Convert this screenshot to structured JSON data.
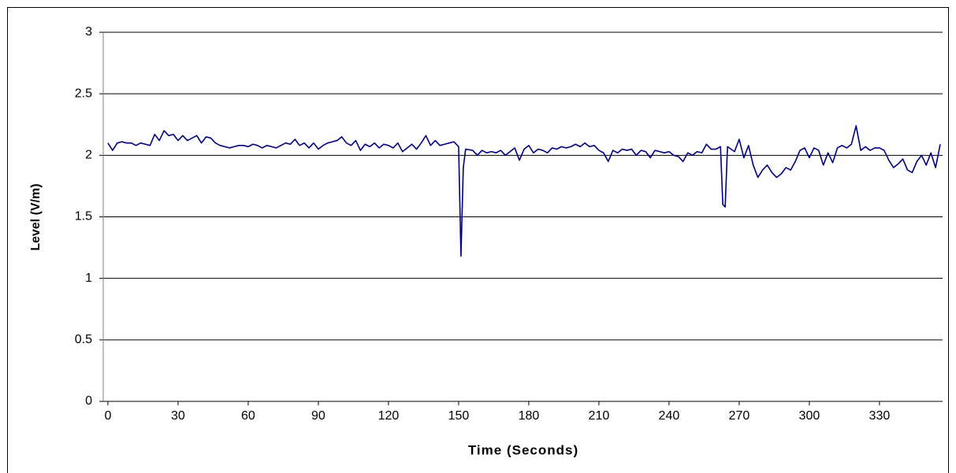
{
  "chart_data": {
    "type": "line",
    "xlabel": "Time (Seconds)",
    "ylabel": "Level (V/m)",
    "x": [
      0,
      2,
      4,
      6,
      8,
      10,
      12,
      14,
      16,
      18,
      20,
      22,
      24,
      26,
      28,
      30,
      32,
      34,
      36,
      38,
      40,
      42,
      44,
      46,
      48,
      50,
      52,
      54,
      56,
      58,
      60,
      62,
      64,
      66,
      68,
      70,
      72,
      74,
      76,
      78,
      80,
      82,
      84,
      86,
      88,
      90,
      92,
      94,
      96,
      98,
      100,
      102,
      104,
      106,
      108,
      110,
      112,
      114,
      116,
      118,
      120,
      122,
      124,
      126,
      128,
      130,
      132,
      134,
      136,
      138,
      140,
      142,
      144,
      146,
      148,
      150,
      151,
      152,
      153,
      156,
      158,
      160,
      162,
      164,
      166,
      168,
      170,
      172,
      174,
      176,
      178,
      180,
      182,
      184,
      186,
      188,
      190,
      192,
      194,
      196,
      198,
      200,
      202,
      204,
      206,
      208,
      210,
      212,
      214,
      216,
      218,
      220,
      222,
      224,
      226,
      228,
      230,
      232,
      234,
      236,
      238,
      240,
      242,
      244,
      246,
      248,
      250,
      252,
      254,
      256,
      258,
      260,
      262,
      263,
      264,
      265,
      268,
      270,
      272,
      274,
      276,
      278,
      280,
      282,
      284,
      286,
      288,
      290,
      292,
      294,
      296,
      298,
      300,
      302,
      304,
      306,
      308,
      310,
      312,
      314,
      316,
      318,
      320,
      322,
      324,
      326,
      328,
      330,
      332,
      334,
      336,
      338,
      340,
      342,
      344,
      346,
      348,
      350,
      352,
      354,
      356
    ],
    "series": [
      {
        "name": "Level",
        "color": "#000080",
        "values": [
          2.1,
          2.04,
          2.1,
          2.11,
          2.1,
          2.1,
          2.08,
          2.1,
          2.09,
          2.08,
          2.17,
          2.12,
          2.2,
          2.16,
          2.17,
          2.12,
          2.16,
          2.12,
          2.14,
          2.16,
          2.1,
          2.15,
          2.14,
          2.1,
          2.08,
          2.07,
          2.06,
          2.07,
          2.08,
          2.08,
          2.07,
          2.09,
          2.08,
          2.06,
          2.08,
          2.07,
          2.06,
          2.08,
          2.1,
          2.09,
          2.13,
          2.08,
          2.1,
          2.06,
          2.1,
          2.05,
          2.08,
          2.1,
          2.11,
          2.12,
          2.15,
          2.1,
          2.08,
          2.12,
          2.04,
          2.09,
          2.07,
          2.1,
          2.06,
          2.09,
          2.08,
          2.06,
          2.1,
          2.03,
          2.06,
          2.09,
          2.05,
          2.1,
          2.16,
          2.08,
          2.12,
          2.08,
          2.09,
          2.1,
          2.11,
          2.07,
          1.18,
          1.9,
          2.05,
          2.04,
          2.0,
          2.04,
          2.02,
          2.03,
          2.02,
          2.04,
          2.0,
          2.03,
          2.06,
          1.96,
          2.05,
          2.08,
          2.02,
          2.05,
          2.04,
          2.02,
          2.06,
          2.05,
          2.07,
          2.06,
          2.07,
          2.09,
          2.07,
          2.1,
          2.07,
          2.08,
          2.04,
          2.02,
          1.95,
          2.04,
          2.02,
          2.05,
          2.04,
          2.05,
          2.0,
          2.04,
          2.03,
          1.98,
          2.04,
          2.03,
          2.02,
          2.03,
          2.0,
          1.99,
          1.95,
          2.02,
          2.0,
          2.03,
          2.02,
          2.09,
          2.05,
          2.05,
          2.07,
          1.6,
          1.58,
          2.07,
          2.03,
          2.13,
          1.98,
          2.08,
          1.92,
          1.82,
          1.88,
          1.92,
          1.86,
          1.82,
          1.85,
          1.9,
          1.88,
          1.95,
          2.04,
          2.06,
          1.98,
          2.06,
          2.04,
          1.92,
          2.02,
          1.94,
          2.06,
          2.08,
          2.06,
          2.09,
          2.24,
          2.04,
          2.07,
          2.04,
          2.06,
          2.06,
          2.04,
          1.96,
          1.9,
          1.93,
          1.97,
          1.88,
          1.86,
          1.95,
          2.0,
          1.92,
          2.02,
          1.9,
          2.09
        ]
      }
    ],
    "xlim": [
      -2,
      357
    ],
    "xticks": [
      0,
      30,
      60,
      90,
      120,
      150,
      180,
      210,
      240,
      270,
      300,
      330
    ],
    "ylim": [
      0,
      3
    ],
    "yticks": [
      0,
      0.5,
      1,
      1.5,
      2,
      2.5,
      3
    ],
    "grid": true
  }
}
